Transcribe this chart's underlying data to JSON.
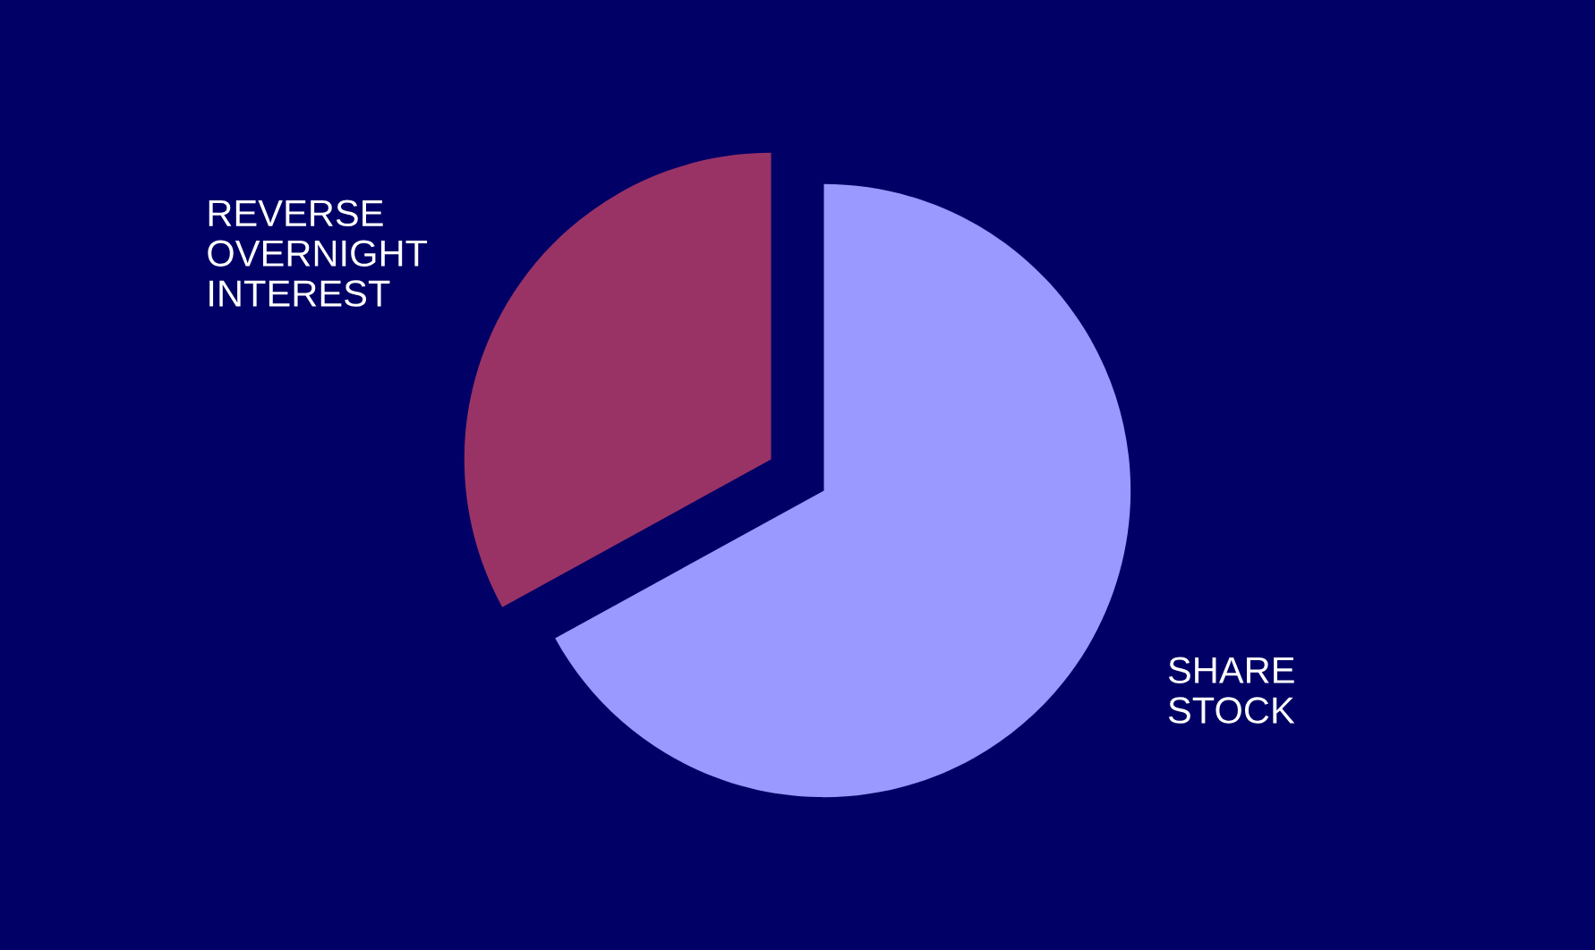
{
  "chart_data": {
    "type": "pie",
    "categories": [
      "REVERSE\nOVERNIGHT\nINTEREST",
      "SHARE\nSTOCK"
    ],
    "values": [
      33,
      67
    ],
    "colors": [
      "#993366",
      "#9999ff"
    ]
  }
}
